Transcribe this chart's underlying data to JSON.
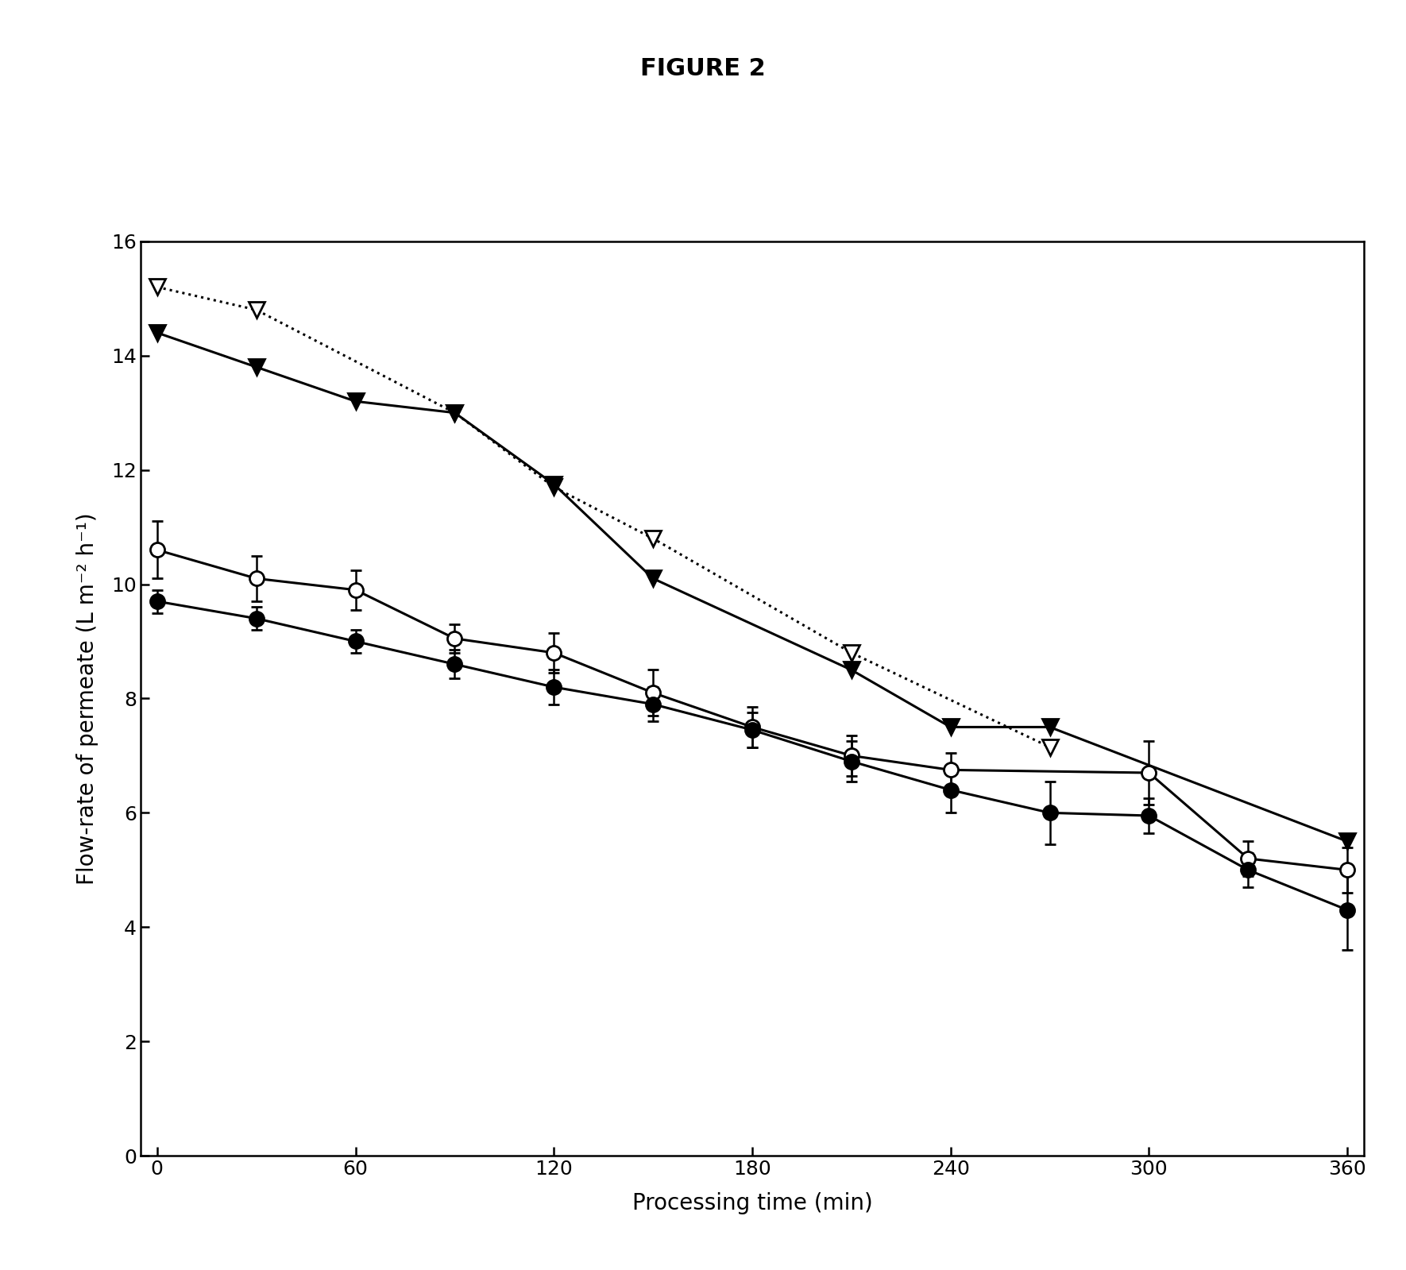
{
  "title": "FIGURE 2",
  "xlabel": "Processing time (min)",
  "ylabel": "Flow-rate of permeate (L m⁻² h⁻¹)",
  "xlim": [
    -5,
    365
  ],
  "ylim": [
    0,
    16
  ],
  "xticks": [
    0,
    60,
    120,
    180,
    240,
    300,
    360
  ],
  "yticks": [
    0,
    2,
    4,
    6,
    8,
    10,
    12,
    14,
    16
  ],
  "series": [
    {
      "label": "open_triangle",
      "x": [
        0,
        30,
        90,
        120,
        150,
        210,
        270
      ],
      "y": [
        15.2,
        14.8,
        13.0,
        11.7,
        10.8,
        8.8,
        7.15
      ],
      "yerr": [
        null,
        null,
        null,
        null,
        null,
        null,
        null
      ],
      "marker": "v",
      "markersize": 14,
      "color": "black",
      "fillstyle": "none",
      "linestyle": "dotted",
      "linewidth": 2.2
    },
    {
      "label": "filled_triangle",
      "x": [
        0,
        30,
        60,
        90,
        120,
        150,
        210,
        240,
        270,
        360
      ],
      "y": [
        14.4,
        13.8,
        13.2,
        13.0,
        11.75,
        10.1,
        8.5,
        7.5,
        7.5,
        5.5
      ],
      "yerr": [
        null,
        null,
        null,
        null,
        null,
        null,
        null,
        null,
        null,
        null
      ],
      "marker": "v",
      "markersize": 14,
      "color": "black",
      "fillstyle": "full",
      "linestyle": "solid",
      "linewidth": 2.2
    },
    {
      "label": "open_circle",
      "x": [
        0,
        30,
        60,
        90,
        120,
        150,
        180,
        210,
        240,
        300,
        330,
        360
      ],
      "y": [
        10.6,
        10.1,
        9.9,
        9.05,
        8.8,
        8.1,
        7.5,
        7.0,
        6.75,
        6.7,
        5.2,
        5.0
      ],
      "yerr": [
        0.5,
        0.4,
        0.35,
        0.25,
        0.35,
        0.4,
        0.35,
        0.35,
        0.3,
        0.55,
        0.3,
        0.4
      ],
      "marker": "o",
      "markersize": 13,
      "color": "black",
      "fillstyle": "none",
      "linestyle": "solid",
      "linewidth": 2.2
    },
    {
      "label": "filled_circle",
      "x": [
        0,
        30,
        60,
        90,
        120,
        150,
        180,
        210,
        240,
        270,
        300,
        330,
        360
      ],
      "y": [
        9.7,
        9.4,
        9.0,
        8.6,
        8.2,
        7.9,
        7.45,
        6.9,
        6.4,
        6.0,
        5.95,
        5.0,
        4.3
      ],
      "yerr": [
        0.2,
        0.2,
        0.2,
        0.25,
        0.3,
        0.3,
        0.3,
        0.35,
        0.4,
        0.55,
        0.3,
        0.3,
        0.7
      ],
      "marker": "o",
      "markersize": 13,
      "color": "black",
      "fillstyle": "full",
      "linestyle": "solid",
      "linewidth": 2.2
    }
  ],
  "background_color": "#ffffff",
  "title_fontsize": 22,
  "axis_label_fontsize": 20,
  "tick_fontsize": 18
}
